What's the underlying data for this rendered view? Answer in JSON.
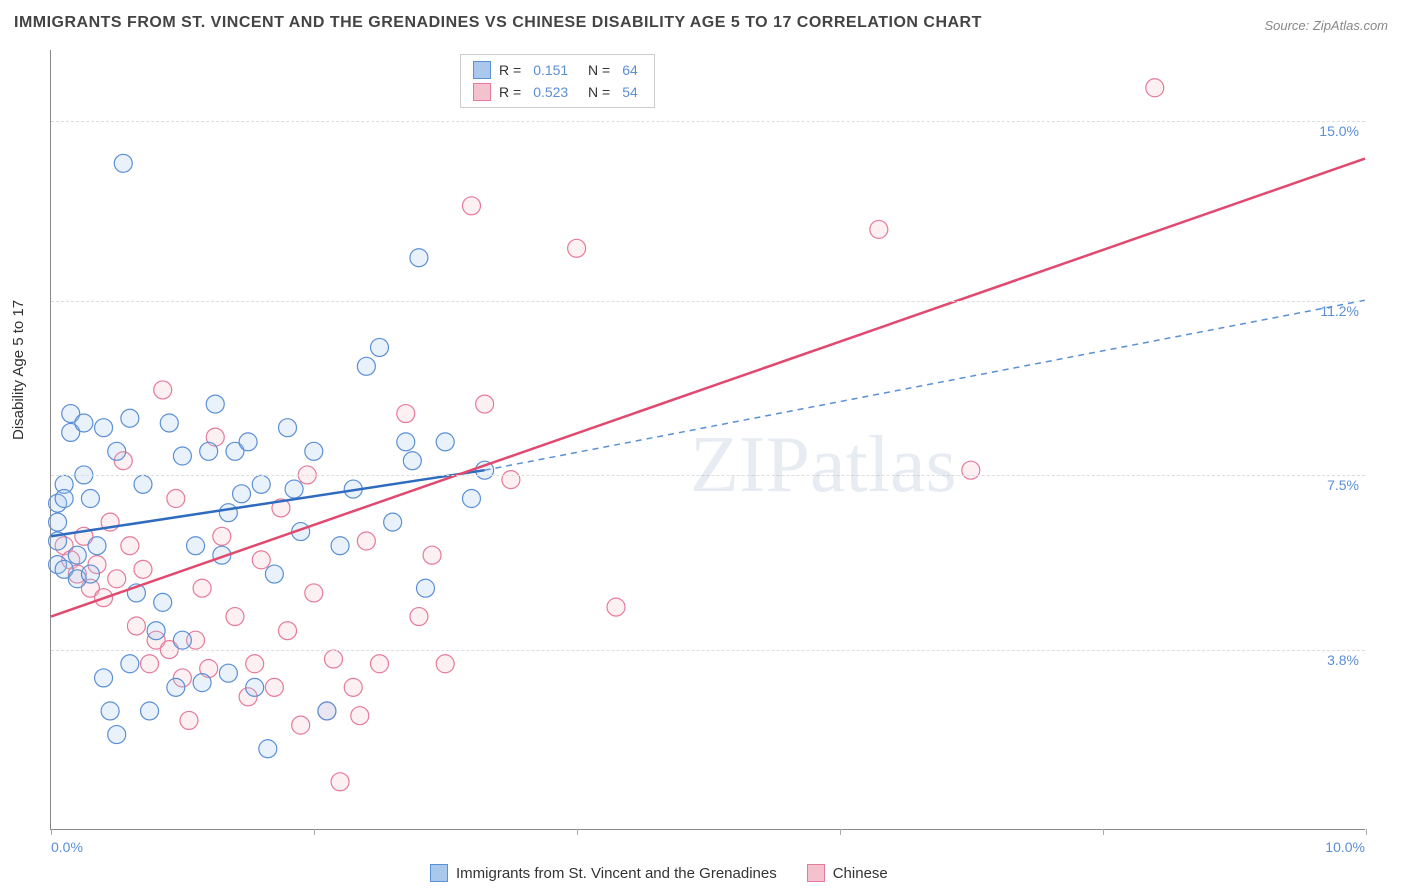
{
  "title": "IMMIGRANTS FROM ST. VINCENT AND THE GRENADINES VS CHINESE DISABILITY AGE 5 TO 17 CORRELATION CHART",
  "source": "Source: ZipAtlas.com",
  "watermark": "ZIPatlas",
  "y_axis_label": "Disability Age 5 to 17",
  "chart": {
    "type": "scatter",
    "xlim": [
      0.0,
      10.0
    ],
    "ylim": [
      0.0,
      16.5
    ],
    "x_ticks": [
      0.0,
      2.0,
      4.0,
      6.0,
      8.0,
      10.0
    ],
    "x_tick_labels": {
      "0": "0.0%",
      "10": "10.0%"
    },
    "y_gridlines": [
      3.8,
      7.5,
      11.2,
      15.0
    ],
    "y_gridline_labels": [
      "3.8%",
      "7.5%",
      "11.2%",
      "15.0%"
    ],
    "background_color": "#ffffff",
    "grid_color": "#dddddd",
    "tick_label_color": "#5B8FD6",
    "axis_label_fontsize": 15,
    "title_fontsize": 16,
    "marker_radius": 9,
    "marker_stroke_width": 1.2,
    "marker_fill_opacity": 0.25,
    "trend_line_width": 2.5
  },
  "series_a": {
    "name": "Immigrants from St. Vincent and the Grenadines",
    "color_fill": "#A9C8EC",
    "color_stroke": "#5B8FD6",
    "R": "0.151",
    "N": "64",
    "trend_solid": {
      "x1": 0.0,
      "y1": 6.2,
      "x2": 3.3,
      "y2": 7.6
    },
    "trend_dashed": {
      "x1": 3.3,
      "y1": 7.6,
      "x2": 10.0,
      "y2": 11.2
    },
    "points": [
      [
        0.05,
        6.9
      ],
      [
        0.05,
        6.5
      ],
      [
        0.05,
        6.1
      ],
      [
        0.05,
        5.6
      ],
      [
        0.1,
        7.3
      ],
      [
        0.1,
        7.0
      ],
      [
        0.1,
        5.5
      ],
      [
        0.15,
        8.8
      ],
      [
        0.15,
        8.4
      ],
      [
        0.2,
        5.8
      ],
      [
        0.2,
        5.3
      ],
      [
        0.25,
        8.6
      ],
      [
        0.25,
        7.5
      ],
      [
        0.3,
        7.0
      ],
      [
        0.3,
        5.4
      ],
      [
        0.35,
        6.0
      ],
      [
        0.4,
        8.5
      ],
      [
        0.4,
        3.2
      ],
      [
        0.45,
        2.5
      ],
      [
        0.5,
        8.0
      ],
      [
        0.5,
        2.0
      ],
      [
        0.55,
        14.1
      ],
      [
        0.6,
        8.7
      ],
      [
        0.6,
        3.5
      ],
      [
        0.65,
        5.0
      ],
      [
        0.7,
        7.3
      ],
      [
        0.75,
        2.5
      ],
      [
        0.8,
        4.2
      ],
      [
        0.85,
        4.8
      ],
      [
        0.9,
        8.6
      ],
      [
        0.95,
        3.0
      ],
      [
        1.0,
        7.9
      ],
      [
        1.0,
        4.0
      ],
      [
        1.1,
        6.0
      ],
      [
        1.15,
        3.1
      ],
      [
        1.2,
        8.0
      ],
      [
        1.25,
        9.0
      ],
      [
        1.3,
        5.8
      ],
      [
        1.35,
        6.7
      ],
      [
        1.35,
        3.3
      ],
      [
        1.4,
        8.0
      ],
      [
        1.45,
        7.1
      ],
      [
        1.5,
        8.2
      ],
      [
        1.55,
        3.0
      ],
      [
        1.6,
        7.3
      ],
      [
        1.65,
        1.7
      ],
      [
        1.7,
        5.4
      ],
      [
        1.8,
        8.5
      ],
      [
        1.85,
        7.2
      ],
      [
        1.9,
        6.3
      ],
      [
        2.0,
        8.0
      ],
      [
        2.1,
        2.5
      ],
      [
        2.2,
        6.0
      ],
      [
        2.3,
        7.2
      ],
      [
        2.4,
        9.8
      ],
      [
        2.5,
        10.2
      ],
      [
        2.6,
        6.5
      ],
      [
        2.7,
        8.2
      ],
      [
        2.75,
        7.8
      ],
      [
        2.8,
        12.1
      ],
      [
        2.85,
        5.1
      ],
      [
        3.0,
        8.2
      ],
      [
        3.2,
        7.0
      ],
      [
        3.3,
        7.6
      ]
    ]
  },
  "series_b": {
    "name": "Chinese",
    "color_fill": "#F4C2CE",
    "color_stroke": "#E67A9A",
    "R": "0.523",
    "N": "54",
    "trend": {
      "x1": 0.0,
      "y1": 4.5,
      "x2": 10.0,
      "y2": 14.2
    },
    "points": [
      [
        0.1,
        6.0
      ],
      [
        0.15,
        5.7
      ],
      [
        0.2,
        5.4
      ],
      [
        0.25,
        6.2
      ],
      [
        0.3,
        5.1
      ],
      [
        0.35,
        5.6
      ],
      [
        0.4,
        4.9
      ],
      [
        0.45,
        6.5
      ],
      [
        0.5,
        5.3
      ],
      [
        0.55,
        7.8
      ],
      [
        0.6,
        6.0
      ],
      [
        0.65,
        4.3
      ],
      [
        0.7,
        5.5
      ],
      [
        0.75,
        3.5
      ],
      [
        0.8,
        4.0
      ],
      [
        0.85,
        9.3
      ],
      [
        0.9,
        3.8
      ],
      [
        0.95,
        7.0
      ],
      [
        1.0,
        3.2
      ],
      [
        1.05,
        2.3
      ],
      [
        1.1,
        4.0
      ],
      [
        1.15,
        5.1
      ],
      [
        1.2,
        3.4
      ],
      [
        1.25,
        8.3
      ],
      [
        1.3,
        6.2
      ],
      [
        1.4,
        4.5
      ],
      [
        1.5,
        2.8
      ],
      [
        1.55,
        3.5
      ],
      [
        1.6,
        5.7
      ],
      [
        1.7,
        3.0
      ],
      [
        1.75,
        6.8
      ],
      [
        1.8,
        4.2
      ],
      [
        1.9,
        2.2
      ],
      [
        1.95,
        7.5
      ],
      [
        2.0,
        5.0
      ],
      [
        2.1,
        2.5
      ],
      [
        2.15,
        3.6
      ],
      [
        2.2,
        1.0
      ],
      [
        2.3,
        3.0
      ],
      [
        2.35,
        2.4
      ],
      [
        2.4,
        6.1
      ],
      [
        2.5,
        3.5
      ],
      [
        2.7,
        8.8
      ],
      [
        2.8,
        4.5
      ],
      [
        2.9,
        5.8
      ],
      [
        3.0,
        3.5
      ],
      [
        3.2,
        13.2
      ],
      [
        3.3,
        9.0
      ],
      [
        3.5,
        7.4
      ],
      [
        4.0,
        12.3
      ],
      [
        4.3,
        4.7
      ],
      [
        6.3,
        12.7
      ],
      [
        7.0,
        7.6
      ],
      [
        8.4,
        15.7
      ]
    ]
  }
}
